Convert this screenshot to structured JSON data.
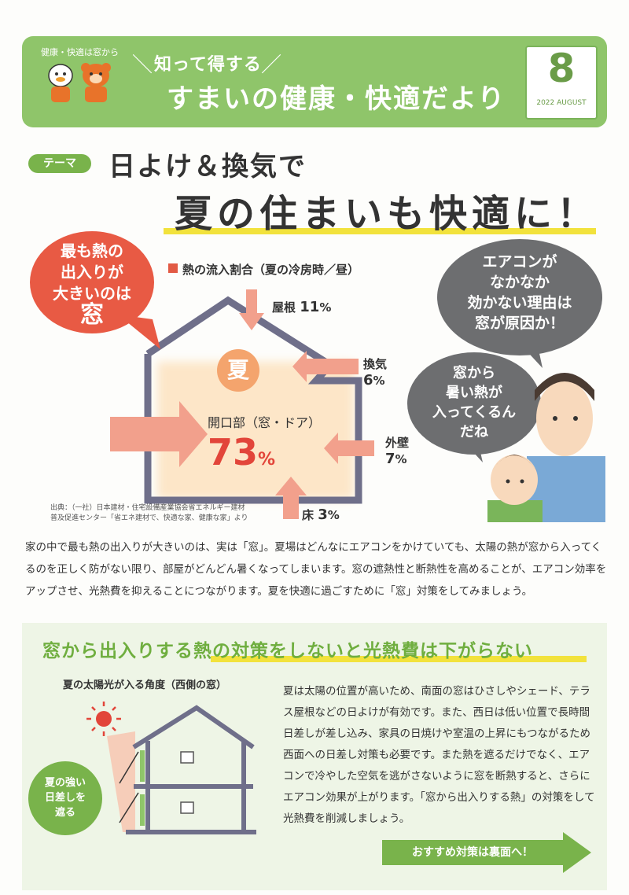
{
  "header": {
    "tagline": "健康・快適は窓から",
    "subtitle": "知って得する",
    "title": "すまいの健康・快適だより",
    "issue_number": "8",
    "issue_date": "2022 AUGUST"
  },
  "theme": {
    "badge": "テーマ",
    "line1": "日よけ＆換気で",
    "line2": "夏の住まいも快適に！"
  },
  "heat_diagram": {
    "callout_lines": [
      "最も熱の",
      "出入りが",
      "大きいのは"
    ],
    "callout_emphasis": "窓",
    "title": "熱の流入割合（夏の冷房時／昼）",
    "season_label": "夏",
    "roof": {
      "label": "屋根",
      "value": "11",
      "unit": "%"
    },
    "ventilation": {
      "label": "換気",
      "value": "6",
      "unit": "%"
    },
    "opening": {
      "label": "開口部（窓・ドア）",
      "value": "73",
      "unit": "%"
    },
    "wall": {
      "label": "外壁",
      "value": "7",
      "unit": "%"
    },
    "floor": {
      "label": "床",
      "value": "3",
      "unit": "%"
    },
    "source_line1": "出典：（一社）日本建材・住宅設備産業協会省エネルギー建材",
    "source_line2": "普及促進センター「省エネ建材で、快適な家、健康な家」より"
  },
  "speech": {
    "bubble1": [
      "エアコンが",
      "なかなか",
      "効かない理由は",
      "窓が原因か！"
    ],
    "bubble2": [
      "窓から",
      "暑い熱が",
      "入ってくるん",
      "だね"
    ]
  },
  "intro_text": "家の中で最も熱の出入りが大きいのは、実は「窓」。夏場はどんなにエアコンをかけていても、太陽の熱が窓から入ってくるのを正しく防がない限り、部屋がどんどん暑くなってしまいます。窓の遮熱性と断熱性を高めることが、エアコン効率をアップさせ、光熱費を抑えることにつながります。夏を快適に過ごすために「窓」対策をしてみましょう。",
  "section2": {
    "title": "窓から出入りする熱の対策をしないと光熱費は下がらない",
    "angle_title": "夏の太陽光が入る角度（西側の窓）",
    "circle_lines": [
      "夏の強い",
      "日差しを",
      "遮る"
    ],
    "body": "夏は太陽の位置が高いため、南面の窓はひさしやシェード、テラス屋根などの日よけが有効です。また、西日は低い位置で長時間日差しが差し込み、家具の日焼けや室温の上昇にもつながるため西面への日差し対策も必要です。また熱を遮るだけでなく、エアコンで冷やした空気を逃がさないように窓を断熱すると、さらにエアコン効果が上がります。「窓から出入りする熱」の対策をして光熱費を削減しましょう。",
    "cta": "おすすめ対策は裏面へ！"
  },
  "colors": {
    "green": "#8fc56a",
    "red": "#e85a44",
    "yellow": "#f2e23c",
    "gray": "#6d6e70"
  }
}
